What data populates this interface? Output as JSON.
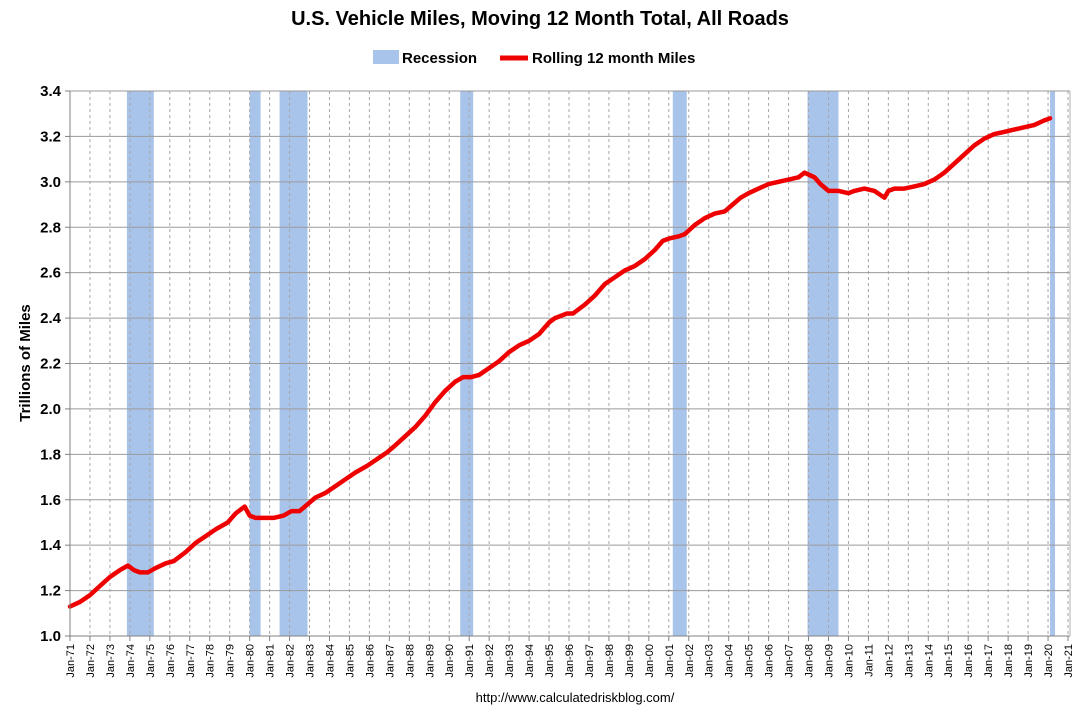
{
  "chart_data": {
    "type": "line",
    "title": "U.S. Vehicle Miles, Moving 12 Month Total, All Roads",
    "ylabel": "Trillions of Miles",
    "xlabel": "",
    "source": "http://www.calculatedriskblog.com/",
    "ylim": [
      1.0,
      3.4
    ],
    "yticks": [
      "1.0",
      "1.2",
      "1.4",
      "1.6",
      "1.8",
      "2.0",
      "2.2",
      "2.4",
      "2.6",
      "2.8",
      "3.0",
      "3.2",
      "3.4"
    ],
    "xlim": [
      1971,
      2021.1
    ],
    "xticks": [
      "Jan-71",
      "Jan-72",
      "Jan-73",
      "Jan-74",
      "Jan-75",
      "Jan-76",
      "Jan-77",
      "Jan-78",
      "Jan-79",
      "Jan-80",
      "Jan-81",
      "Jan-82",
      "Jan-83",
      "Jan-84",
      "Jan-85",
      "Jan-86",
      "Jan-87",
      "Jan-88",
      "Jan-89",
      "Jan-90",
      "Jan-91",
      "Jan-92",
      "Jan-93",
      "Jan-94",
      "Jan-95",
      "Jan-96",
      "Jan-97",
      "Jan-98",
      "Jan-99",
      "Jan-00",
      "Jan-01",
      "Jan-02",
      "Jan-03",
      "Jan-04",
      "Jan-05",
      "Jan-06",
      "Jan-07",
      "Jan-08",
      "Jan-09",
      "Jan-10",
      "Jan-11",
      "Jan-12",
      "Jan-13",
      "Jan-14",
      "Jan-15",
      "Jan-16",
      "Jan-17",
      "Jan-18",
      "Jan-19",
      "Jan-20",
      "Jan-21"
    ],
    "grid": true,
    "legend_position": "top-center",
    "legend": [
      {
        "name": "Recession",
        "color": "#a9c4eb",
        "kind": "box"
      },
      {
        "name": "Rolling 12 month Miles",
        "color": "#ee0000",
        "kind": "line"
      }
    ],
    "recessions": [
      [
        1973.85,
        1975.2
      ],
      [
        1980.0,
        1980.55
      ],
      [
        1981.5,
        1982.9
      ],
      [
        1990.55,
        1991.2
      ],
      [
        2001.2,
        2001.9
      ],
      [
        2007.95,
        2009.5
      ],
      [
        2020.1,
        2020.35
      ]
    ],
    "series": [
      {
        "name": "Rolling 12 month Miles",
        "color": "#ee0000",
        "x": [
          1971.0,
          1971.5,
          1972.0,
          1972.5,
          1973.0,
          1973.5,
          1973.9,
          1974.2,
          1974.5,
          1974.9,
          1975.3,
          1975.8,
          1976.2,
          1976.8,
          1977.3,
          1977.8,
          1978.3,
          1978.9,
          1979.3,
          1979.6,
          1979.75,
          1980.0,
          1980.3,
          1980.7,
          1981.2,
          1981.7,
          1982.1,
          1982.5,
          1982.9,
          1983.3,
          1983.8,
          1984.3,
          1984.8,
          1985.3,
          1985.9,
          1986.4,
          1986.9,
          1987.3,
          1987.8,
          1988.3,
          1988.8,
          1989.3,
          1989.8,
          1990.3,
          1990.7,
          1991.1,
          1991.5,
          1992.0,
          1992.5,
          1993.0,
          1993.5,
          1994.0,
          1994.5,
          1995.0,
          1995.3,
          1995.9,
          1996.2,
          1996.8,
          1997.3,
          1997.8,
          1998.3,
          1998.8,
          1999.3,
          1999.8,
          2000.3,
          2000.7,
          2001.0,
          2001.5,
          2001.8,
          2002.3,
          2002.8,
          2003.3,
          2003.8,
          2004.2,
          2004.6,
          2005.0,
          2005.5,
          2006.0,
          2006.5,
          2007.0,
          2007.5,
          2007.8,
          2008.3,
          2008.6,
          2009.0,
          2009.5,
          2010.0,
          2010.3,
          2010.8,
          2011.3,
          2011.8,
          2012.0,
          2012.3,
          2012.8,
          2013.3,
          2013.8,
          2014.3,
          2014.8,
          2015.3,
          2015.8,
          2016.3,
          2016.8,
          2017.3,
          2017.8,
          2018.3,
          2018.8,
          2019.3,
          2019.8,
          2020.1
        ],
        "values": [
          1.13,
          1.15,
          1.18,
          1.22,
          1.26,
          1.29,
          1.31,
          1.29,
          1.28,
          1.28,
          1.3,
          1.32,
          1.33,
          1.37,
          1.41,
          1.44,
          1.47,
          1.5,
          1.54,
          1.56,
          1.57,
          1.53,
          1.52,
          1.52,
          1.52,
          1.53,
          1.55,
          1.55,
          1.58,
          1.61,
          1.63,
          1.66,
          1.69,
          1.72,
          1.75,
          1.78,
          1.81,
          1.84,
          1.88,
          1.92,
          1.97,
          2.03,
          2.08,
          2.12,
          2.14,
          2.14,
          2.15,
          2.18,
          2.21,
          2.25,
          2.28,
          2.3,
          2.33,
          2.38,
          2.4,
          2.42,
          2.42,
          2.46,
          2.5,
          2.55,
          2.58,
          2.61,
          2.63,
          2.66,
          2.7,
          2.74,
          2.75,
          2.76,
          2.77,
          2.81,
          2.84,
          2.86,
          2.87,
          2.9,
          2.93,
          2.95,
          2.97,
          2.99,
          3.0,
          3.01,
          3.02,
          3.04,
          3.02,
          2.99,
          2.96,
          2.96,
          2.95,
          2.96,
          2.97,
          2.96,
          2.93,
          2.96,
          2.97,
          2.97,
          2.98,
          2.99,
          3.01,
          3.04,
          3.08,
          3.12,
          3.16,
          3.19,
          3.21,
          3.22,
          3.23,
          3.24,
          3.25,
          3.27,
          3.28
        ]
      }
    ]
  }
}
